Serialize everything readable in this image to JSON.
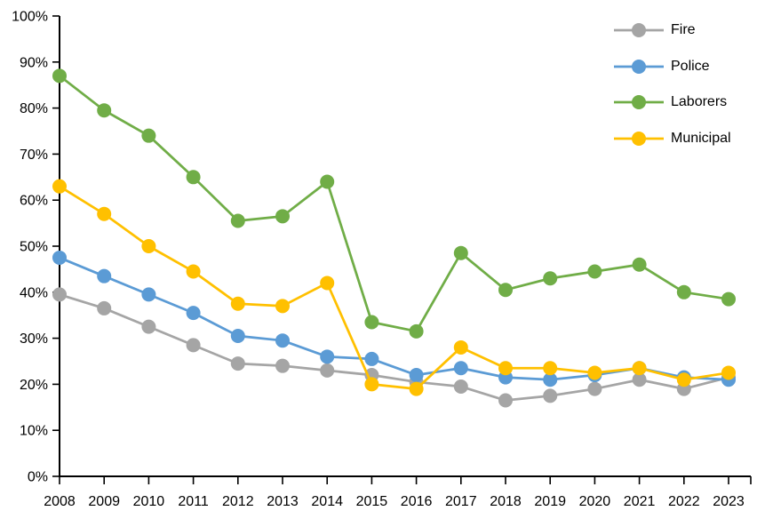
{
  "chart_data": {
    "type": "line",
    "title": "",
    "xlabel": "",
    "ylabel": "",
    "grid": false,
    "legend_position": "top-right-inside",
    "background": "#FFFFFF",
    "axis_color": "#000000",
    "ylim": [
      0,
      100
    ],
    "ytick_step": 10,
    "ytick_suffix": "%",
    "categories": [
      2008,
      2009,
      2010,
      2011,
      2012,
      2013,
      2014,
      2015,
      2016,
      2017,
      2018,
      2019,
      2020,
      2021,
      2022,
      2023
    ],
    "series": [
      {
        "name": "Fire",
        "color": "#A5A5A5",
        "values": [
          39.5,
          36.5,
          32.5,
          28.5,
          24.5,
          24,
          23,
          22,
          20.5,
          19.5,
          16.5,
          17.5,
          19,
          21,
          19,
          21.5
        ]
      },
      {
        "name": "Police",
        "color": "#5B9BD5",
        "values": [
          47.5,
          43.5,
          39.5,
          35.5,
          30.5,
          29.5,
          26,
          25.5,
          22,
          23.5,
          21.5,
          21,
          22,
          23.5,
          21.5,
          21
        ]
      },
      {
        "name": "Laborers",
        "color": "#70AD47",
        "values": [
          87,
          79.5,
          74,
          65,
          55.5,
          56.5,
          64,
          33.5,
          31.5,
          48.5,
          40.5,
          43,
          44.5,
          46,
          40,
          38.5
        ]
      },
      {
        "name": "Municipal",
        "color": "#FFC000",
        "values": [
          63,
          57,
          50,
          44.5,
          37.5,
          37,
          42,
          20,
          19,
          28,
          23.5,
          23.5,
          22.5,
          23.5,
          21,
          22.5
        ]
      }
    ]
  }
}
